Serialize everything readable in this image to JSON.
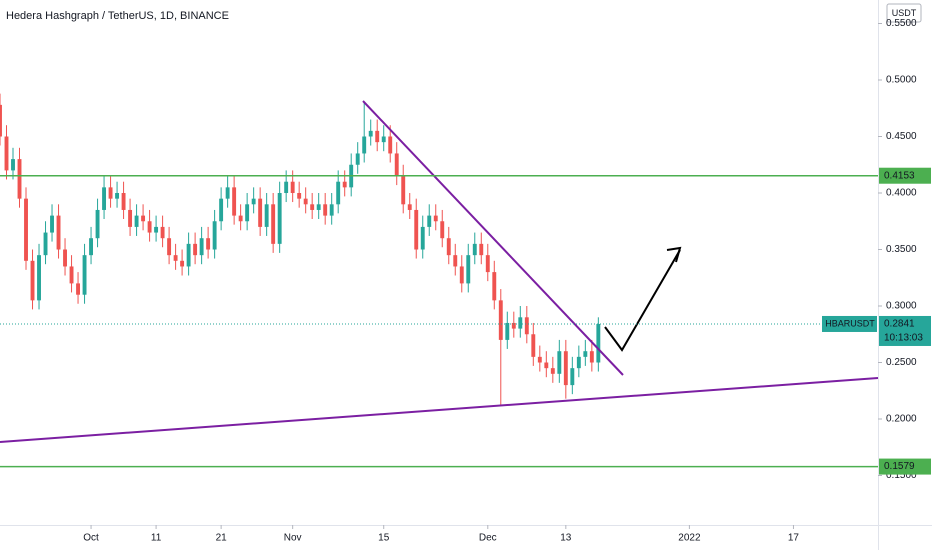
{
  "chart_data": {
    "type": "candlestick",
    "title": "Hedera Hashgraph / TetherUS, 1D, BINANCE",
    "currency": "USDT",
    "up_color": "#26a69a",
    "down_color": "#ef5350",
    "x": [
      0,
      1,
      2,
      3,
      4,
      5,
      6,
      7,
      8,
      9,
      10,
      11,
      12,
      13,
      14,
      15,
      16,
      17,
      18,
      19,
      20,
      21,
      22,
      23,
      24,
      25,
      26,
      27,
      28,
      29,
      30,
      31,
      32,
      33,
      34,
      35,
      36,
      37,
      38,
      39,
      40,
      41,
      42,
      43,
      44,
      45,
      46,
      47,
      48,
      49,
      50,
      51,
      52,
      53,
      54,
      55,
      56,
      57,
      58,
      59,
      60,
      61,
      62,
      63,
      64,
      65,
      66,
      67,
      68,
      69,
      70,
      71,
      72,
      73,
      74,
      75,
      76,
      77,
      78,
      79,
      80,
      81,
      82,
      83,
      84,
      85,
      86,
      87,
      88,
      89,
      90,
      91,
      92
    ],
    "open": [
      0.478,
      0.45,
      0.42,
      0.43,
      0.395,
      0.34,
      0.305,
      0.345,
      0.365,
      0.38,
      0.35,
      0.335,
      0.32,
      0.31,
      0.345,
      0.36,
      0.385,
      0.405,
      0.395,
      0.4,
      0.385,
      0.37,
      0.38,
      0.375,
      0.365,
      0.37,
      0.36,
      0.345,
      0.34,
      0.335,
      0.355,
      0.345,
      0.36,
      0.35,
      0.375,
      0.395,
      0.405,
      0.38,
      0.375,
      0.39,
      0.395,
      0.37,
      0.39,
      0.355,
      0.4,
      0.41,
      0.4,
      0.395,
      0.39,
      0.385,
      0.39,
      0.38,
      0.39,
      0.41,
      0.405,
      0.425,
      0.435,
      0.45,
      0.455,
      0.445,
      0.45,
      0.435,
      0.415,
      0.39,
      0.385,
      0.35,
      0.37,
      0.38,
      0.375,
      0.36,
      0.345,
      0.335,
      0.32,
      0.345,
      0.355,
      0.345,
      0.33,
      0.305,
      0.27,
      0.285,
      0.28,
      0.29,
      0.275,
      0.255,
      0.25,
      0.245,
      0.24,
      0.26,
      0.23,
      0.245,
      0.255,
      0.26,
      0.25
    ],
    "high": [
      0.488,
      0.46,
      0.44,
      0.44,
      0.405,
      0.35,
      0.355,
      0.375,
      0.39,
      0.39,
      0.36,
      0.345,
      0.33,
      0.355,
      0.37,
      0.395,
      0.415,
      0.415,
      0.41,
      0.41,
      0.395,
      0.39,
      0.39,
      0.385,
      0.38,
      0.38,
      0.37,
      0.355,
      0.35,
      0.365,
      0.365,
      0.37,
      0.37,
      0.385,
      0.405,
      0.415,
      0.415,
      0.39,
      0.4,
      0.405,
      0.405,
      0.4,
      0.4,
      0.41,
      0.42,
      0.42,
      0.41,
      0.405,
      0.4,
      0.4,
      0.4,
      0.4,
      0.42,
      0.42,
      0.435,
      0.445,
      0.48,
      0.465,
      0.465,
      0.46,
      0.46,
      0.445,
      0.425,
      0.4,
      0.395,
      0.38,
      0.39,
      0.39,
      0.385,
      0.37,
      0.355,
      0.345,
      0.355,
      0.365,
      0.365,
      0.355,
      0.34,
      0.315,
      0.295,
      0.295,
      0.3,
      0.3,
      0.285,
      0.265,
      0.26,
      0.255,
      0.27,
      0.27,
      0.255,
      0.265,
      0.27,
      0.27,
      0.29
    ],
    "low": [
      0.442,
      0.412,
      0.412,
      0.387,
      0.332,
      0.297,
      0.297,
      0.337,
      0.357,
      0.342,
      0.327,
      0.312,
      0.302,
      0.302,
      0.337,
      0.352,
      0.377,
      0.387,
      0.387,
      0.377,
      0.362,
      0.362,
      0.367,
      0.357,
      0.357,
      0.352,
      0.337,
      0.332,
      0.327,
      0.327,
      0.337,
      0.337,
      0.342,
      0.342,
      0.367,
      0.387,
      0.372,
      0.367,
      0.367,
      0.382,
      0.362,
      0.362,
      0.347,
      0.347,
      0.392,
      0.392,
      0.387,
      0.382,
      0.377,
      0.377,
      0.372,
      0.372,
      0.382,
      0.397,
      0.397,
      0.417,
      0.427,
      0.442,
      0.437,
      0.437,
      0.427,
      0.407,
      0.382,
      0.377,
      0.342,
      0.342,
      0.362,
      0.367,
      0.352,
      0.337,
      0.327,
      0.312,
      0.312,
      0.337,
      0.337,
      0.322,
      0.297,
      0.212,
      0.262,
      0.272,
      0.272,
      0.267,
      0.247,
      0.242,
      0.237,
      0.232,
      0.232,
      0.218,
      0.222,
      0.237,
      0.247,
      0.242,
      0.242
    ],
    "close": [
      0.45,
      0.42,
      0.43,
      0.395,
      0.34,
      0.305,
      0.345,
      0.365,
      0.38,
      0.35,
      0.335,
      0.32,
      0.31,
      0.345,
      0.36,
      0.385,
      0.405,
      0.395,
      0.4,
      0.385,
      0.37,
      0.38,
      0.375,
      0.365,
      0.37,
      0.36,
      0.345,
      0.34,
      0.335,
      0.355,
      0.345,
      0.36,
      0.35,
      0.375,
      0.395,
      0.405,
      0.38,
      0.375,
      0.39,
      0.395,
      0.37,
      0.39,
      0.355,
      0.4,
      0.41,
      0.4,
      0.395,
      0.39,
      0.385,
      0.39,
      0.38,
      0.39,
      0.41,
      0.405,
      0.425,
      0.435,
      0.45,
      0.455,
      0.445,
      0.45,
      0.435,
      0.415,
      0.39,
      0.385,
      0.35,
      0.37,
      0.38,
      0.375,
      0.36,
      0.345,
      0.335,
      0.32,
      0.345,
      0.355,
      0.345,
      0.33,
      0.305,
      0.27,
      0.285,
      0.28,
      0.29,
      0.275,
      0.255,
      0.25,
      0.245,
      0.24,
      0.26,
      0.23,
      0.245,
      0.255,
      0.26,
      0.25,
      0.2841
    ],
    "xlim": [
      0,
      135
    ],
    "xticks": [
      {
        "value": 14,
        "label": "Oct"
      },
      {
        "value": 24,
        "label": "11"
      },
      {
        "value": 34,
        "label": "21"
      },
      {
        "value": 45,
        "label": "Nov"
      },
      {
        "value": 59,
        "label": "15"
      },
      {
        "value": 75,
        "label": "Dec"
      },
      {
        "value": 87,
        "label": "13"
      },
      {
        "value": 106,
        "label": "2022"
      },
      {
        "value": 122,
        "label": "17"
      }
    ],
    "ylim": [
      0.1062,
      0.5708
    ],
    "yticks": [
      {
        "value": 0.15,
        "label": "0.1500"
      },
      {
        "value": 0.2,
        "label": "0.2000"
      },
      {
        "value": 0.25,
        "label": "0.2500"
      },
      {
        "value": 0.3,
        "label": "0.3000"
      },
      {
        "value": 0.35,
        "label": "0.3500"
      },
      {
        "value": 0.4,
        "label": "0.4000"
      },
      {
        "value": 0.45,
        "label": "0.4500"
      },
      {
        "value": 0.5,
        "label": "0.5000"
      },
      {
        "value": 0.55,
        "label": "0.5500"
      }
    ],
    "hlines": [
      0.4153,
      0.1579
    ],
    "hline_color": "#4caf50",
    "last_price": {
      "symbol": "HBARUSDT",
      "value": 0.2841,
      "countdown": "10:13:03"
    }
  }
}
